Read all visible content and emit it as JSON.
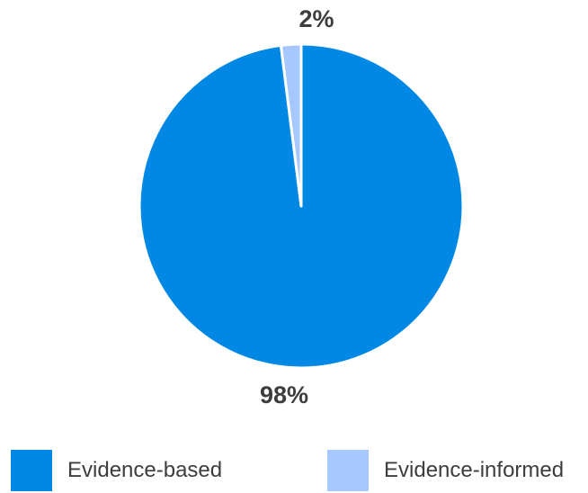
{
  "chart_data": {
    "type": "pie",
    "categories": [
      "Evidence-based",
      "Evidence-informed"
    ],
    "values": [
      98,
      2
    ],
    "data_labels": [
      "98%",
      "2%"
    ],
    "colors": [
      "#0088e4",
      "#a6c8ff"
    ],
    "start_angle": "12 o'clock",
    "direction": "clockwise",
    "title": "",
    "legend_position": "bottom"
  },
  "legend": {
    "items": [
      {
        "label": "Evidence-based",
        "color": "#0088e4"
      },
      {
        "label": "Evidence-informed",
        "color": "#a6c8ff"
      }
    ]
  }
}
